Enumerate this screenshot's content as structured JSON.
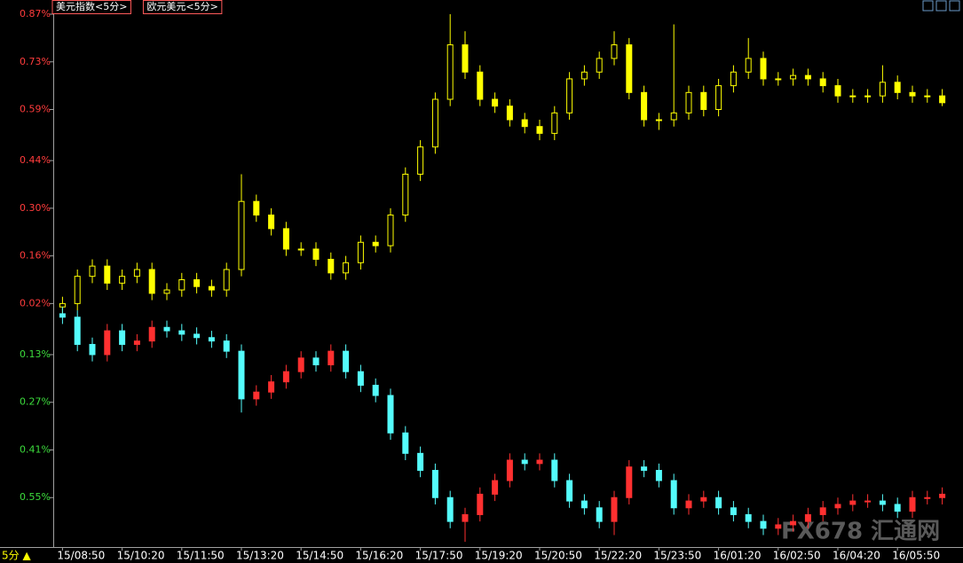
{
  "chart_data": {
    "type": "candlestick",
    "period_label": "5分 ▲",
    "watermark": "FX678 汇通网",
    "ylim": [
      -0.69,
      0.87
    ],
    "yticks": [
      {
        "value": 0.87,
        "label": "0.87%"
      },
      {
        "value": 0.73,
        "label": "0.73%"
      },
      {
        "value": 0.59,
        "label": "0.59%"
      },
      {
        "value": 0.44,
        "label": "0.44%"
      },
      {
        "value": 0.3,
        "label": "0.30%"
      },
      {
        "value": 0.16,
        "label": "0.16%"
      },
      {
        "value": 0.02,
        "label": "0.02%"
      },
      {
        "value": -0.13,
        "label": "0.13%"
      },
      {
        "value": -0.27,
        "label": "0.27%"
      },
      {
        "value": -0.41,
        "label": "0.41%"
      },
      {
        "value": -0.55,
        "label": "0.55%"
      }
    ],
    "xlim": [
      0,
      60
    ],
    "xticks": [
      {
        "value": 0,
        "label": "15/08:50"
      },
      {
        "value": 4,
        "label": "15/10:20"
      },
      {
        "value": 8,
        "label": "15/11:50"
      },
      {
        "value": 12,
        "label": "15/13:20"
      },
      {
        "value": 16,
        "label": "15/14:50"
      },
      {
        "value": 20,
        "label": "15/16:20"
      },
      {
        "value": 24,
        "label": "15/17:50"
      },
      {
        "value": 28,
        "label": "15/19:20"
      },
      {
        "value": 32,
        "label": "15/20:50"
      },
      {
        "value": 36,
        "label": "15/22:20"
      },
      {
        "value": 40,
        "label": "15/23:50"
      },
      {
        "value": 44,
        "label": "16/01:20"
      },
      {
        "value": 48,
        "label": "16/02:50"
      },
      {
        "value": 52,
        "label": "16/04:20"
      },
      {
        "value": 56,
        "label": "16/05:50"
      }
    ],
    "series": [
      {
        "name": "美元指数<5分>",
        "up_color": "#ffff00",
        "down_color": "#ffff00",
        "open": [
          0.01,
          0.02,
          0.1,
          0.13,
          0.08,
          0.1,
          0.12,
          0.05,
          0.06,
          0.09,
          0.07,
          0.06,
          0.12,
          0.32,
          0.28,
          0.24,
          0.18,
          0.18,
          0.15,
          0.11,
          0.14,
          0.2,
          0.19,
          0.28,
          0.4,
          0.48,
          0.62,
          0.78,
          0.7,
          0.62,
          0.6,
          0.56,
          0.54,
          0.52,
          0.58,
          0.68,
          0.7,
          0.74,
          0.78,
          0.64,
          0.56,
          0.56,
          0.58,
          0.64,
          0.59,
          0.66,
          0.7,
          0.74,
          0.68,
          0.68,
          0.69,
          0.68,
          0.66,
          0.63,
          0.63,
          0.63,
          0.67,
          0.64,
          0.63,
          0.63
        ],
        "high": [
          0.04,
          0.12,
          0.15,
          0.15,
          0.12,
          0.14,
          0.14,
          0.08,
          0.11,
          0.11,
          0.09,
          0.14,
          0.4,
          0.34,
          0.3,
          0.26,
          0.2,
          0.2,
          0.17,
          0.16,
          0.22,
          0.22,
          0.3,
          0.42,
          0.5,
          0.64,
          0.87,
          0.82,
          0.72,
          0.64,
          0.62,
          0.58,
          0.56,
          0.6,
          0.7,
          0.72,
          0.76,
          0.82,
          0.8,
          0.66,
          0.58,
          0.84,
          0.66,
          0.66,
          0.68,
          0.72,
          0.8,
          0.76,
          0.7,
          0.71,
          0.71,
          0.7,
          0.68,
          0.65,
          0.65,
          0.72,
          0.69,
          0.66,
          0.65,
          0.65
        ],
        "low": [
          -0.01,
          0.0,
          0.08,
          0.06,
          0.06,
          0.08,
          0.03,
          0.03,
          0.04,
          0.05,
          0.04,
          0.04,
          0.1,
          0.26,
          0.22,
          0.16,
          0.16,
          0.13,
          0.09,
          0.09,
          0.12,
          0.17,
          0.17,
          0.26,
          0.38,
          0.46,
          0.6,
          0.68,
          0.6,
          0.58,
          0.54,
          0.52,
          0.5,
          0.5,
          0.56,
          0.66,
          0.68,
          0.72,
          0.62,
          0.54,
          0.53,
          0.54,
          0.56,
          0.57,
          0.57,
          0.64,
          0.68,
          0.66,
          0.66,
          0.66,
          0.66,
          0.64,
          0.61,
          0.61,
          0.61,
          0.61,
          0.62,
          0.61,
          0.61,
          0.6
        ],
        "close": [
          0.02,
          0.1,
          0.13,
          0.08,
          0.1,
          0.12,
          0.05,
          0.06,
          0.09,
          0.07,
          0.06,
          0.12,
          0.32,
          0.28,
          0.24,
          0.18,
          0.18,
          0.15,
          0.11,
          0.14,
          0.2,
          0.19,
          0.28,
          0.4,
          0.48,
          0.62,
          0.78,
          0.7,
          0.62,
          0.6,
          0.56,
          0.54,
          0.52,
          0.58,
          0.68,
          0.7,
          0.74,
          0.78,
          0.64,
          0.56,
          0.56,
          0.58,
          0.64,
          0.59,
          0.66,
          0.7,
          0.74,
          0.68,
          0.68,
          0.69,
          0.68,
          0.66,
          0.63,
          0.63,
          0.63,
          0.67,
          0.64,
          0.63,
          0.63,
          0.61
        ]
      },
      {
        "name": "欧元美元<5分>",
        "up_color": "#ff3030",
        "down_color": "#54fcfc",
        "open": [
          -0.01,
          -0.02,
          -0.1,
          -0.13,
          -0.06,
          -0.1,
          -0.09,
          -0.05,
          -0.06,
          -0.07,
          -0.08,
          -0.09,
          -0.12,
          -0.26,
          -0.24,
          -0.21,
          -0.18,
          -0.14,
          -0.16,
          -0.12,
          -0.18,
          -0.22,
          -0.25,
          -0.36,
          -0.42,
          -0.47,
          -0.55,
          -0.62,
          -0.6,
          -0.54,
          -0.5,
          -0.44,
          -0.45,
          -0.44,
          -0.5,
          -0.56,
          -0.58,
          -0.62,
          -0.55,
          -0.46,
          -0.47,
          -0.5,
          -0.58,
          -0.56,
          -0.55,
          -0.58,
          -0.6,
          -0.62,
          -0.64,
          -0.63,
          -0.62,
          -0.6,
          -0.58,
          -0.57,
          -0.56,
          -0.56,
          -0.57,
          -0.59,
          -0.55,
          -0.55
        ],
        "high": [
          0.01,
          0.0,
          -0.08,
          -0.04,
          -0.04,
          -0.07,
          -0.03,
          -0.03,
          -0.04,
          -0.05,
          -0.06,
          -0.07,
          -0.1,
          -0.22,
          -0.19,
          -0.16,
          -0.12,
          -0.12,
          -0.1,
          -0.1,
          -0.16,
          -0.2,
          -0.23,
          -0.34,
          -0.4,
          -0.45,
          -0.53,
          -0.58,
          -0.52,
          -0.48,
          -0.42,
          -0.42,
          -0.42,
          -0.42,
          -0.48,
          -0.54,
          -0.56,
          -0.53,
          -0.44,
          -0.44,
          -0.45,
          -0.48,
          -0.54,
          -0.53,
          -0.53,
          -0.56,
          -0.58,
          -0.6,
          -0.61,
          -0.6,
          -0.58,
          -0.56,
          -0.55,
          -0.54,
          -0.54,
          -0.54,
          -0.55,
          -0.53,
          -0.53,
          -0.52
        ],
        "low": [
          -0.04,
          -0.12,
          -0.15,
          -0.15,
          -0.12,
          -0.12,
          -0.11,
          -0.08,
          -0.09,
          -0.1,
          -0.11,
          -0.14,
          -0.3,
          -0.28,
          -0.26,
          -0.23,
          -0.2,
          -0.18,
          -0.18,
          -0.2,
          -0.24,
          -0.27,
          -0.38,
          -0.44,
          -0.49,
          -0.57,
          -0.64,
          -0.68,
          -0.62,
          -0.56,
          -0.52,
          -0.47,
          -0.47,
          -0.52,
          -0.58,
          -0.6,
          -0.64,
          -0.66,
          -0.57,
          -0.49,
          -0.52,
          -0.6,
          -0.6,
          -0.58,
          -0.6,
          -0.62,
          -0.64,
          -0.66,
          -0.66,
          -0.65,
          -0.64,
          -0.62,
          -0.6,
          -0.59,
          -0.58,
          -0.59,
          -0.61,
          -0.61,
          -0.57,
          -0.57
        ],
        "close": [
          -0.02,
          -0.1,
          -0.13,
          -0.06,
          -0.1,
          -0.09,
          -0.05,
          -0.06,
          -0.07,
          -0.08,
          -0.09,
          -0.12,
          -0.26,
          -0.24,
          -0.21,
          -0.18,
          -0.14,
          -0.16,
          -0.12,
          -0.18,
          -0.22,
          -0.25,
          -0.36,
          -0.42,
          -0.47,
          -0.55,
          -0.62,
          -0.6,
          -0.54,
          -0.5,
          -0.44,
          -0.45,
          -0.44,
          -0.5,
          -0.56,
          -0.58,
          -0.62,
          -0.55,
          -0.46,
          -0.47,
          -0.5,
          -0.58,
          -0.56,
          -0.55,
          -0.58,
          -0.6,
          -0.62,
          -0.64,
          -0.63,
          -0.62,
          -0.6,
          -0.58,
          -0.57,
          -0.56,
          -0.56,
          -0.57,
          -0.59,
          -0.55,
          -0.55,
          -0.54
        ]
      }
    ]
  }
}
